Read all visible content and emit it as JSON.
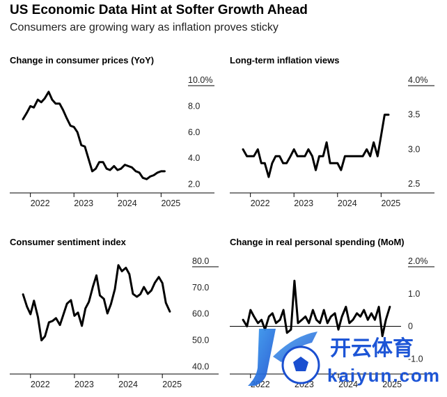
{
  "header": {
    "title": "US Economic Data Hint at Softer Growth Ahead",
    "subtitle": "Consumers are growing wary as inflation proves sticky"
  },
  "watermark": {
    "brand": "开云体育",
    "url": "kaiyun.com"
  },
  "chart_data": [
    {
      "id": "cpi",
      "type": "line",
      "title": "Change in consumer prices (YoY)",
      "xlabel": "",
      "ylabel": "",
      "xlim": [
        2021.75,
        2025.33
      ],
      "ylim": [
        1.5,
        10.0
      ],
      "yticks": [
        2.0,
        4.0,
        6.0,
        8.0,
        10.0
      ],
      "ytick_labels": [
        "2.0",
        "4.0",
        "6.0",
        "8.0",
        "10.0%"
      ],
      "xticks": [
        2022,
        2023,
        2024,
        2025
      ],
      "xtick_labels": [
        "2022",
        "2023",
        "2024",
        "2025"
      ],
      "grid": "horizontal-top",
      "series": [
        {
          "x": [
            2021.83,
            2021.92,
            2022.0,
            2022.08,
            2022.17,
            2022.25,
            2022.33,
            2022.42,
            2022.5,
            2022.58,
            2022.67,
            2022.75,
            2022.83,
            2022.92,
            2023.0,
            2023.08,
            2023.17,
            2023.25,
            2023.33,
            2023.42,
            2023.5,
            2023.58,
            2023.67,
            2023.75,
            2023.83,
            2023.92,
            2024.0,
            2024.08,
            2024.17,
            2024.25,
            2024.33,
            2024.42,
            2024.5,
            2024.58,
            2024.67,
            2024.75,
            2024.83,
            2024.92,
            2025.0,
            2025.08
          ],
          "y": [
            7.0,
            7.5,
            8.0,
            7.9,
            8.5,
            8.3,
            8.6,
            9.1,
            8.5,
            8.2,
            8.2,
            7.7,
            7.1,
            6.5,
            6.4,
            6.0,
            5.0,
            4.9,
            4.0,
            3.0,
            3.2,
            3.7,
            3.7,
            3.2,
            3.1,
            3.4,
            3.1,
            3.2,
            3.5,
            3.4,
            3.3,
            3.0,
            2.9,
            2.5,
            2.4,
            2.6,
            2.7,
            2.9,
            3.0,
            3.0
          ]
        }
      ]
    },
    {
      "id": "inflation-views",
      "type": "line",
      "title": "Long-term inflation views",
      "xlabel": "",
      "ylabel": "",
      "xlim": [
        2021.75,
        2025.33
      ],
      "ylim": [
        2.4,
        4.0
      ],
      "yticks": [
        2.5,
        3.0,
        3.5,
        4.0
      ],
      "ytick_labels": [
        "2.5",
        "3.0",
        "3.5",
        "4.0%"
      ],
      "xticks": [
        2022,
        2023,
        2024,
        2025
      ],
      "xtick_labels": [
        "2022",
        "2023",
        "2024",
        "2025"
      ],
      "grid": "horizontal-top",
      "series": [
        {
          "x": [
            2021.83,
            2021.92,
            2022.0,
            2022.08,
            2022.17,
            2022.25,
            2022.33,
            2022.42,
            2022.5,
            2022.58,
            2022.67,
            2022.75,
            2022.83,
            2022.92,
            2023.0,
            2023.08,
            2023.17,
            2023.25,
            2023.33,
            2023.42,
            2023.5,
            2023.58,
            2023.67,
            2023.75,
            2023.83,
            2023.92,
            2024.0,
            2024.08,
            2024.17,
            2024.25,
            2024.33,
            2024.42,
            2024.5,
            2024.58,
            2024.67,
            2024.75,
            2024.83,
            2024.92,
            2025.0,
            2025.08,
            2025.17
          ],
          "y": [
            3.0,
            2.9,
            2.9,
            2.9,
            3.0,
            2.8,
            2.8,
            2.6,
            2.8,
            2.9,
            2.9,
            2.8,
            2.8,
            2.9,
            3.0,
            2.9,
            2.9,
            2.9,
            3.0,
            2.9,
            2.7,
            2.9,
            2.9,
            3.1,
            2.8,
            2.8,
            2.8,
            2.7,
            2.9,
            2.9,
            2.9,
            2.9,
            2.9,
            2.9,
            3.0,
            2.9,
            3.1,
            2.9,
            3.2,
            3.5,
            3.5
          ]
        }
      ]
    },
    {
      "id": "sentiment",
      "type": "line",
      "title": "Consumer sentiment index",
      "xlabel": "",
      "ylabel": "",
      "xlim": [
        2021.75,
        2025.33
      ],
      "ylim": [
        38.0,
        80.0
      ],
      "yticks": [
        40.0,
        50.0,
        60.0,
        70.0,
        80.0
      ],
      "ytick_labels": [
        "40.0",
        "50.0",
        "60.0",
        "70.0",
        "80.0"
      ],
      "xticks": [
        2022,
        2023,
        2024,
        2025
      ],
      "xtick_labels": [
        "2022",
        "2023",
        "2024",
        "2025"
      ],
      "grid": "horizontal-top",
      "series": [
        {
          "x": [
            2021.83,
            2021.92,
            2022.0,
            2022.08,
            2022.17,
            2022.25,
            2022.33,
            2022.42,
            2022.5,
            2022.58,
            2022.67,
            2022.75,
            2022.83,
            2022.92,
            2023.0,
            2023.08,
            2023.17,
            2023.25,
            2023.33,
            2023.42,
            2023.5,
            2023.58,
            2023.67,
            2023.75,
            2023.83,
            2023.92,
            2024.0,
            2024.08,
            2024.17,
            2024.25,
            2024.33,
            2024.42,
            2024.5,
            2024.58,
            2024.67,
            2024.75,
            2024.83,
            2024.92,
            2025.0,
            2025.08,
            2025.17
          ],
          "y": [
            67.4,
            62.8,
            59.9,
            65.0,
            58.8,
            50.0,
            51.5,
            56.8,
            57.3,
            58.4,
            55.8,
            59.8,
            63.9,
            65.2,
            59.3,
            60.5,
            55.5,
            62.1,
            64.6,
            70.3,
            74.6,
            67.0,
            65.7,
            60.2,
            63.7,
            69.4,
            78.5,
            76.2,
            77.5,
            75.1,
            67.6,
            66.5,
            67.5,
            70.2,
            67.6,
            68.9,
            71.8,
            74.0,
            71.7,
            64.2,
            60.9
          ]
        }
      ]
    },
    {
      "id": "spending",
      "type": "line",
      "title": "Change in real personal spending (MoM)",
      "xlabel": "",
      "ylabel": "",
      "xlim": [
        2021.75,
        2025.33
      ],
      "ylim": [
        -1.4,
        2.0
      ],
      "yticks": [
        -1.0,
        0.0,
        1.0,
        2.0
      ],
      "ytick_labels": [
        "-1.0",
        "0",
        "1.0",
        "2.0%"
      ],
      "xticks": [
        2022,
        2023,
        2024,
        2025
      ],
      "xtick_labels": [
        "2022",
        "2023",
        "2024",
        "2025"
      ],
      "grid": "horizontal-top",
      "zero_line": true,
      "series": [
        {
          "x": [
            2021.83,
            2021.92,
            2022.0,
            2022.08,
            2022.17,
            2022.25,
            2022.33,
            2022.42,
            2022.5,
            2022.58,
            2022.67,
            2022.75,
            2022.83,
            2022.92,
            2023.0,
            2023.08,
            2023.17,
            2023.25,
            2023.33,
            2023.42,
            2023.5,
            2023.58,
            2023.67,
            2023.75,
            2023.83,
            2023.92,
            2024.0,
            2024.08,
            2024.17,
            2024.25,
            2024.33,
            2024.42,
            2024.5,
            2024.58,
            2024.67,
            2024.75,
            2024.83,
            2024.92,
            2025.0,
            2025.08,
            2025.17
          ],
          "y": [
            0.2,
            0.0,
            0.5,
            0.3,
            0.1,
            0.2,
            -0.1,
            0.3,
            0.4,
            0.1,
            0.2,
            0.5,
            -0.2,
            -0.1,
            1.4,
            0.1,
            0.2,
            0.3,
            0.1,
            0.5,
            0.2,
            0.1,
            0.5,
            0.1,
            0.3,
            0.4,
            -0.1,
            0.3,
            0.6,
            0.1,
            0.2,
            0.4,
            0.3,
            0.5,
            0.2,
            0.4,
            0.2,
            0.6,
            -0.3,
            0.2,
            0.6
          ]
        }
      ]
    }
  ]
}
